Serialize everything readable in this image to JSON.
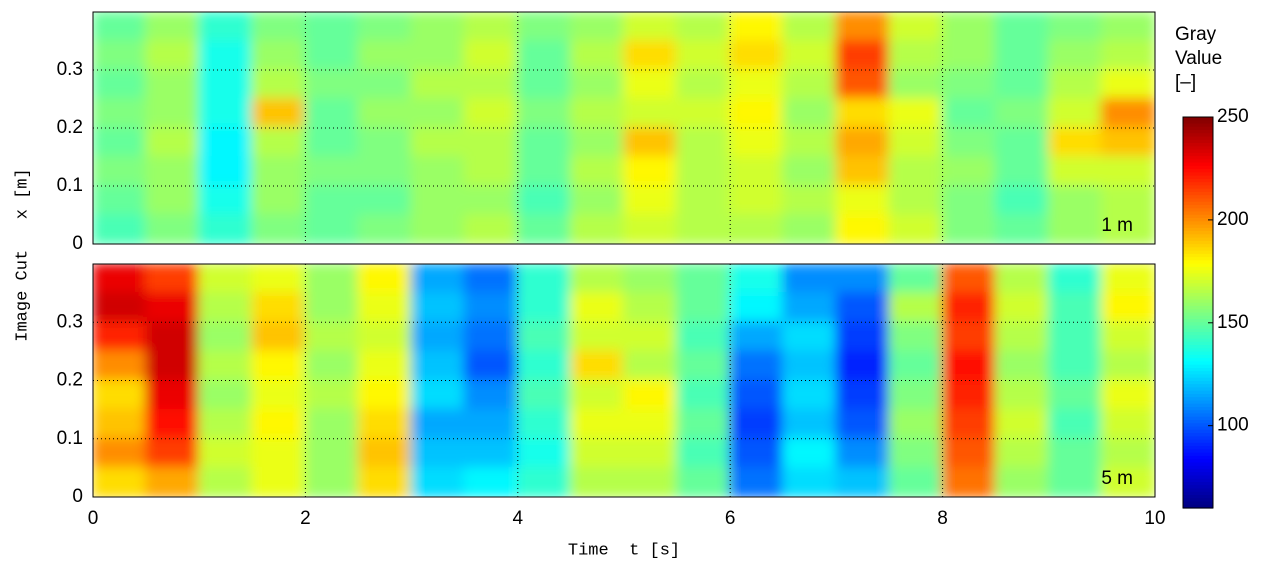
{
  "chart_data": [
    {
      "type": "heatmap",
      "label": "1 m",
      "ylabel": "Image Cut   x [m]",
      "colormap": "jet",
      "xlim": [
        0,
        10
      ],
      "xticks": [
        0,
        2,
        4,
        6,
        8,
        10
      ],
      "ylim": [
        0,
        0.4
      ],
      "yticks": [
        0,
        0.1,
        0.2,
        0.3
      ],
      "grid": true,
      "values": [
        [
          150,
          160,
          140,
          155,
          150,
          155,
          160,
          165,
          155,
          160,
          170,
          165,
          180,
          165,
          200,
          170,
          160,
          150,
          155,
          160
        ],
        [
          155,
          165,
          135,
          160,
          150,
          160,
          160,
          170,
          150,
          165,
          185,
          170,
          185,
          170,
          215,
          165,
          160,
          150,
          160,
          165
        ],
        [
          150,
          160,
          135,
          165,
          155,
          155,
          165,
          165,
          150,
          160,
          175,
          165,
          175,
          165,
          210,
          160,
          155,
          150,
          165,
          175
        ],
        [
          155,
          160,
          135,
          190,
          150,
          160,
          160,
          170,
          155,
          165,
          170,
          170,
          180,
          160,
          185,
          175,
          150,
          155,
          170,
          200
        ],
        [
          150,
          165,
          130,
          165,
          150,
          155,
          165,
          165,
          150,
          160,
          190,
          165,
          175,
          165,
          195,
          170,
          155,
          150,
          185,
          190
        ],
        [
          155,
          160,
          130,
          160,
          155,
          155,
          160,
          165,
          150,
          165,
          180,
          165,
          170,
          160,
          190,
          165,
          160,
          150,
          170,
          170
        ],
        [
          150,
          160,
          135,
          160,
          150,
          150,
          160,
          160,
          145,
          160,
          175,
          165,
          170,
          165,
          175,
          165,
          155,
          145,
          160,
          165
        ],
        [
          145,
          155,
          140,
          155,
          150,
          155,
          160,
          165,
          150,
          165,
          170,
          165,
          165,
          160,
          180,
          170,
          155,
          150,
          160,
          165
        ]
      ],
      "colorbar": {
        "title": [
          "Gray",
          "Value",
          "[–]"
        ],
        "lim": [
          60,
          250
        ],
        "ticks": [
          100,
          150,
          200,
          250
        ]
      }
    },
    {
      "type": "heatmap",
      "label": "5 m",
      "xlabel": "Time  t [s]",
      "colormap": "jet",
      "xlim": [
        0,
        10
      ],
      "xticks": [
        0,
        2,
        4,
        6,
        8,
        10
      ],
      "ylim": [
        0,
        0.4
      ],
      "yticks": [
        0,
        0.1,
        0.2,
        0.3
      ],
      "grid": true,
      "values": [
        [
          230,
          215,
          170,
          175,
          160,
          180,
          115,
          105,
          140,
          165,
          160,
          150,
          135,
          110,
          110,
          150,
          210,
          165,
          140,
          175
        ],
        [
          235,
          230,
          165,
          185,
          160,
          175,
          120,
          110,
          140,
          175,
          165,
          150,
          130,
          115,
          100,
          165,
          220,
          170,
          145,
          180
        ],
        [
          220,
          235,
          160,
          190,
          165,
          170,
          115,
          105,
          145,
          170,
          170,
          145,
          115,
          125,
          95,
          155,
          215,
          165,
          145,
          170
        ],
        [
          200,
          235,
          165,
          180,
          160,
          175,
          120,
          100,
          140,
          185,
          165,
          150,
          105,
          120,
          90,
          150,
          225,
          160,
          145,
          165
        ],
        [
          185,
          230,
          160,
          175,
          165,
          180,
          125,
          110,
          145,
          170,
          180,
          145,
          100,
          125,
          95,
          155,
          220,
          165,
          150,
          175
        ],
        [
          190,
          225,
          165,
          180,
          160,
          185,
          115,
          115,
          140,
          175,
          175,
          150,
          95,
          120,
          100,
          160,
          215,
          170,
          145,
          170
        ],
        [
          200,
          215,
          170,
          175,
          160,
          190,
          120,
          120,
          135,
          170,
          170,
          145,
          100,
          130,
          110,
          155,
          210,
          165,
          150,
          165
        ],
        [
          185,
          195,
          165,
          175,
          160,
          185,
          125,
          130,
          140,
          165,
          165,
          150,
          105,
          125,
          120,
          150,
          205,
          160,
          150,
          170
        ]
      ]
    }
  ]
}
